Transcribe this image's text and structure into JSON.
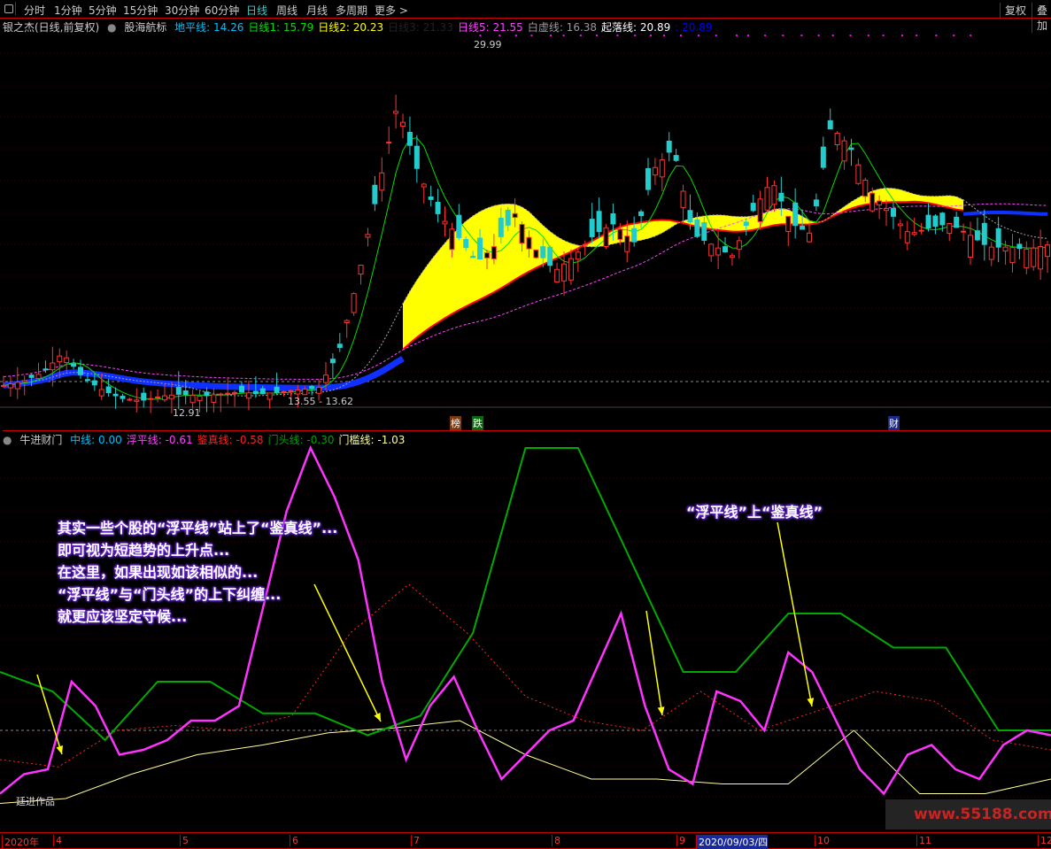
{
  "toolbar": {
    "periods": [
      "分时",
      "1分钟",
      "5分钟",
      "15分钟",
      "30分钟",
      "60分钟",
      "日线",
      "周线",
      "月线",
      "多周期",
      "更多 >"
    ],
    "active": "日线",
    "right": [
      "复权",
      "叠加"
    ]
  },
  "price_legend": {
    "stock": "银之杰(日线,前复权)",
    "indicator": "股海航标",
    "items": [
      {
        "label": "地平线: 14.26",
        "color": "#00bfff"
      },
      {
        "label": "日线1: 15.79",
        "color": "#00e000"
      },
      {
        "label": "日线2: 20.23",
        "color": "#ffff00"
      },
      {
        "label": "日线3: 21.33",
        "color": "#222222"
      },
      {
        "label": "日线5: 21.55",
        "color": "#ff40ff"
      },
      {
        "label": "白虚线: 16.38",
        "color": "#999999"
      },
      {
        "label": "起落线: 20.89",
        "color": "#ffffff"
      },
      {
        "label": ": 20.89",
        "color": "#0000ff"
      }
    ]
  },
  "price_labels": {
    "high": "29.99",
    "low": "12.91",
    "range": "13.55 - 13.62"
  },
  "events": [
    {
      "text": "榜",
      "bg": "#7a3a10"
    },
    {
      "text": "跌",
      "bg": "#0a6a0a"
    },
    {
      "text": "财",
      "bg": "#1a2a8a"
    }
  ],
  "ind_legend": {
    "name": "牛进财门",
    "items": [
      {
        "label": "中线: 0.00",
        "color": "#00bfff"
      },
      {
        "label": "浮平线: -0.61",
        "color": "#ff40ff"
      },
      {
        "label": "鉴真线: -0.58",
        "color": "#ff2020"
      },
      {
        "label": "门头线: -0.30",
        "color": "#00a000"
      },
      {
        "label": "门槛线: -1.03",
        "color": "#ffff99"
      }
    ]
  },
  "notes": {
    "left": [
      "其实一些个股的“浮平线”站上了“鉴真线”...",
      "即可视为短趋势的上升点...",
      "在这里，如果出现如该相似的...",
      "“浮平线”与“门头线”的上下纠缠...",
      "就更应该坚定守候..."
    ],
    "right": "“浮平线”上“鉴真线”",
    "watermark": "廷进作品"
  },
  "axis": {
    "labels": [
      "2020年",
      "4",
      "5",
      "6",
      "7",
      "8",
      "9",
      "2020/09/03/四",
      "10",
      "11",
      "12"
    ],
    "site": "www.55188.com"
  },
  "chart_data": {
    "price_close_approx": [
      14.0,
      14.2,
      14.6,
      15.5,
      14.4,
      13.8,
      13.4,
      13.3,
      13.5,
      13.6,
      13.5,
      13.6,
      13.7,
      13.6,
      13.7,
      13.8,
      13.9,
      15.5,
      19,
      23,
      27,
      24,
      22,
      21,
      19.7,
      20.5,
      22,
      20.3,
      19.3,
      20,
      21,
      21.5,
      20.6,
      24,
      25,
      21,
      20.5,
      20,
      22,
      23.5,
      21.5,
      21,
      26,
      25,
      23,
      22,
      21,
      21.3,
      21.5,
      21,
      20.4,
      20.4,
      20.3,
      20.5
    ],
    "price_range": [
      12.91,
      29.99
    ],
    "series": {
      "浮平线": [
        -1.3,
        -0.9,
        -0.8,
        1.0,
        0.5,
        -0.5,
        -0.4,
        -0.2,
        0.2,
        0.2,
        0.5,
        2.5,
        4.5,
        5.8,
        4.8,
        3.5,
        1.0,
        -0.6,
        0.5,
        1.1,
        0,
        -1.0,
        -0.5,
        0,
        0.2,
        1.3,
        2.4,
        0.5,
        -0.8,
        -1.1,
        0.8,
        0.6,
        0,
        1.6,
        1.2,
        0.2,
        -0.8,
        -1.3,
        -0.5,
        -0.3,
        -0.8,
        -1.0,
        -0.3,
        0,
        -0.1
      ],
      "门头线": [
        1.2,
        0.8,
        -0.2,
        1.0,
        1.0,
        0.35,
        0.35,
        -0.1,
        0.3,
        2.0,
        5.8,
        5.8,
        3.5,
        1.2,
        1.2,
        2.4,
        2.4,
        1.7,
        1.7,
        0,
        0
      ],
      "门槛线": [
        -1.5,
        -1.4,
        -0.9,
        -0.5,
        -0.3,
        -0.05,
        0.05,
        0.2,
        -0.5,
        -1.0,
        -1.0,
        -1.1,
        -1.1,
        0,
        -1.3,
        -1.3,
        -1.0
      ],
      "鉴真线": [
        -0.6,
        -0.75,
        0,
        0.1,
        0,
        0.3,
        2.0,
        3.0,
        2.0,
        0.7,
        0.2,
        0,
        0.8,
        0,
        0.4,
        0.8,
        0.6,
        -0.2,
        -0.4
      ]
    }
  }
}
